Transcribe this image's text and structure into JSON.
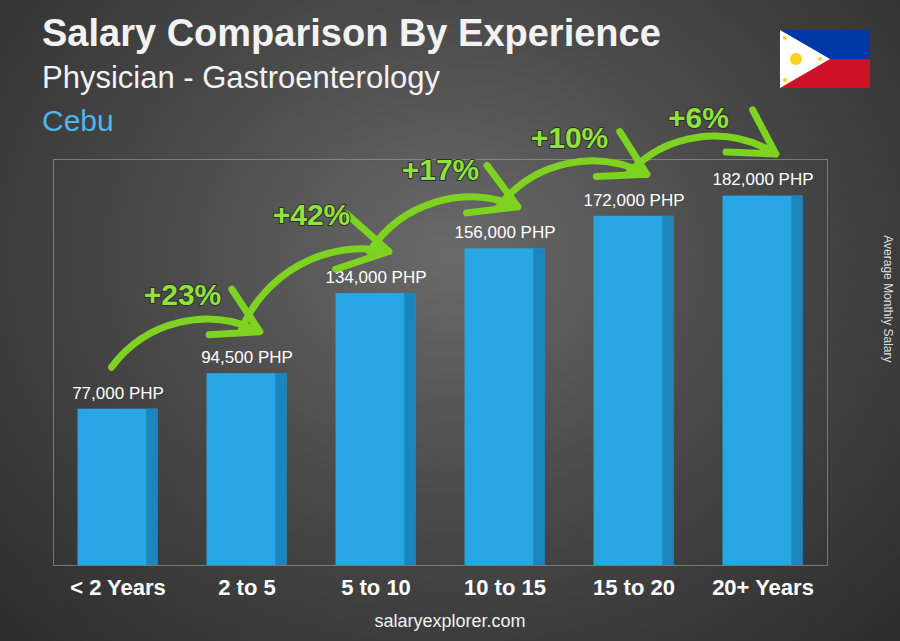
{
  "chart_data": {
    "type": "bar",
    "title": "Salary Comparison By Experience",
    "subtitle": "Physician - Gastroenterology",
    "region": "Cebu",
    "y_label": "Average Monthly Salary",
    "source": "salaryexplorer.com",
    "categories": [
      "< 2 Years",
      "2 to 5",
      "5 to 10",
      "10 to 15",
      "15 to 20",
      "20+ Years"
    ],
    "values": [
      77000,
      94500,
      134000,
      156000,
      172000,
      182000
    ],
    "value_labels": [
      "77,000 PHP",
      "94,500 PHP",
      "134,000 PHP",
      "156,000 PHP",
      "172,000 PHP",
      "182,000 PHP"
    ],
    "data_labels": true,
    "annotations": [
      "+23%",
      "+42%",
      "+17%",
      "+10%",
      "+6%"
    ],
    "color": "#27a6e3",
    "ylim": [
      0,
      200000
    ],
    "yticks": [],
    "tick_labels": "x",
    "grid": false
  }
}
